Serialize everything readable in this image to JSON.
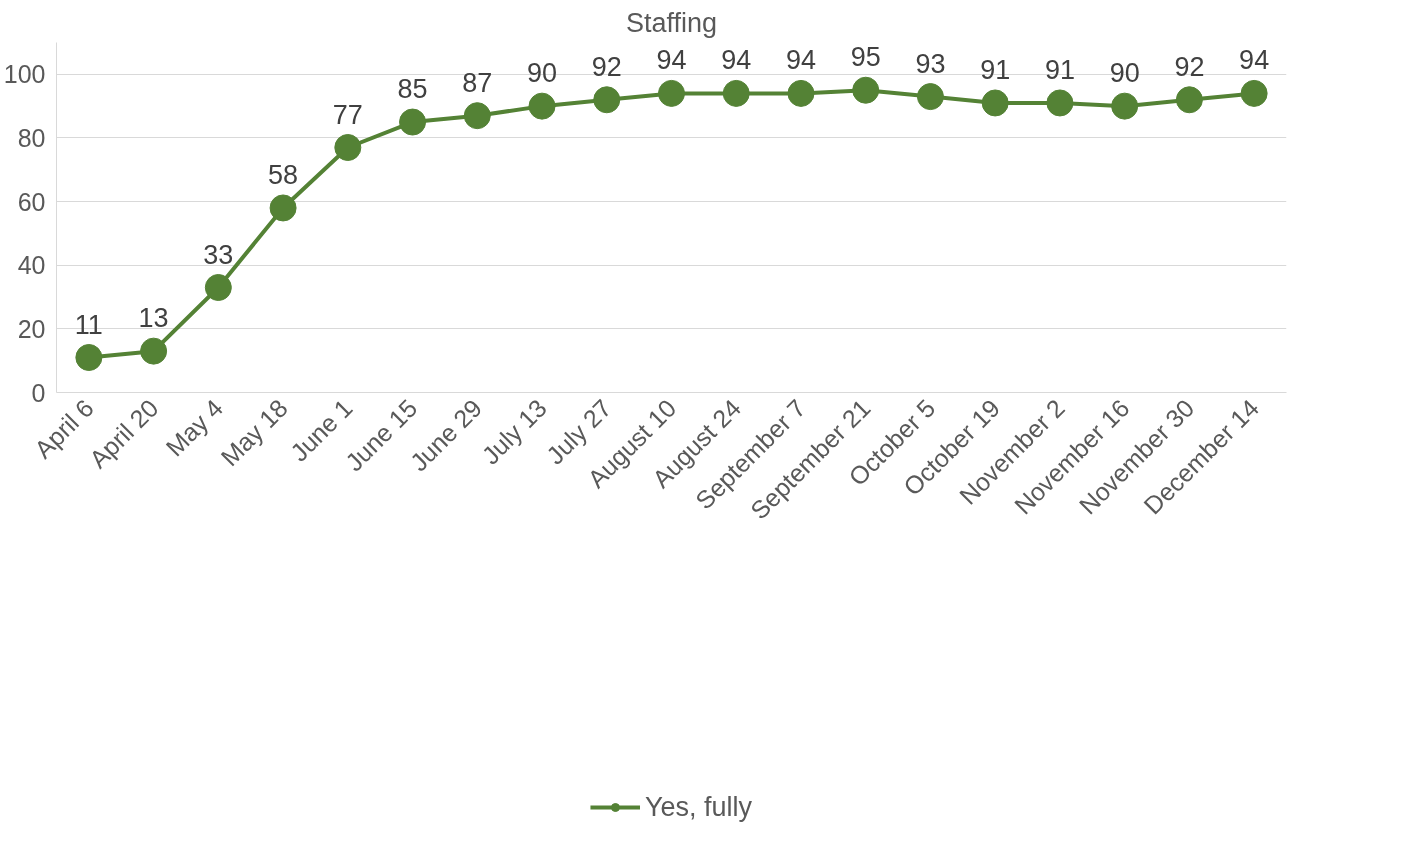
{
  "chart_data": {
    "type": "line",
    "title": "Staffing",
    "categories": [
      "April 6",
      "April 20",
      "May 4",
      "May 18",
      "June 1",
      "June 15",
      "June 29",
      "July 13",
      "July 27",
      "August 10",
      "August 24",
      "September 7",
      "September 21",
      "October 5",
      "October 19",
      "November 2",
      "November 16",
      "November 30",
      "December 14"
    ],
    "series": [
      {
        "name": "Yes, fully",
        "color": "#548235",
        "values": [
          11,
          13,
          33,
          58,
          77,
          85,
          87,
          90,
          92,
          94,
          94,
          94,
          95,
          93,
          91,
          91,
          90,
          92,
          94
        ]
      }
    ],
    "ylim": [
      0,
      110
    ],
    "yticks": [
      0,
      20,
      40,
      60,
      80,
      100
    ],
    "grid": "y",
    "legend": "bottom",
    "marker": "circle",
    "line_style": "solid",
    "data_labels": true
  }
}
